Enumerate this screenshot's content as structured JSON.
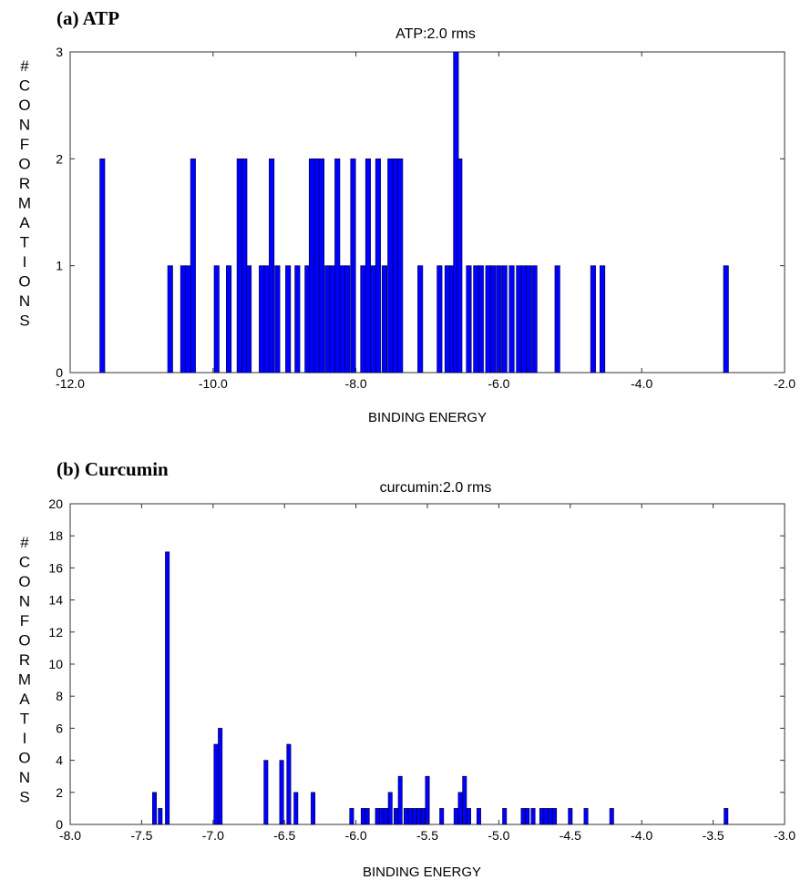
{
  "colors": {
    "bar": "#0000ff",
    "frame": "#333333",
    "text": "#000000"
  },
  "chart_data": [
    {
      "type": "bar",
      "panel_label": "(a) ATP",
      "title": "ATP:2.0 rms",
      "xlabel": "BINDING ENERGY",
      "ylabel": "# CONFORMATIONS",
      "xlim": [
        -12.0,
        -2.0
      ],
      "ylim": [
        0,
        3
      ],
      "xticks": [
        -12.0,
        -10.0,
        -8.0,
        -6.0,
        -4.0,
        -2.0
      ],
      "xtick_labels": [
        "-12.0",
        "-10.0",
        "-8.0",
        "-6.0",
        "-4.0",
        "-2.0"
      ],
      "yticks": [
        0,
        1,
        2,
        3
      ],
      "ytick_labels": [
        "0",
        "1",
        "2",
        "3"
      ],
      "grid": false,
      "bar_width": 0.07,
      "bars": [
        {
          "x": -11.55,
          "y": 2
        },
        {
          "x": -10.6,
          "y": 1
        },
        {
          "x": -10.42,
          "y": 1
        },
        {
          "x": -10.35,
          "y": 1
        },
        {
          "x": -10.28,
          "y": 2
        },
        {
          "x": -9.95,
          "y": 1
        },
        {
          "x": -9.78,
          "y": 1
        },
        {
          "x": -9.63,
          "y": 2
        },
        {
          "x": -9.56,
          "y": 2
        },
        {
          "x": -9.5,
          "y": 1
        },
        {
          "x": -9.32,
          "y": 1
        },
        {
          "x": -9.25,
          "y": 1
        },
        {
          "x": -9.18,
          "y": 2
        },
        {
          "x": -9.1,
          "y": 1
        },
        {
          "x": -8.95,
          "y": 1
        },
        {
          "x": -8.82,
          "y": 1
        },
        {
          "x": -8.68,
          "y": 1
        },
        {
          "x": -8.62,
          "y": 2
        },
        {
          "x": -8.55,
          "y": 2
        },
        {
          "x": -8.48,
          "y": 2
        },
        {
          "x": -8.4,
          "y": 1
        },
        {
          "x": -8.33,
          "y": 1
        },
        {
          "x": -8.26,
          "y": 2
        },
        {
          "x": -8.19,
          "y": 1
        },
        {
          "x": -8.12,
          "y": 1
        },
        {
          "x": -8.04,
          "y": 2
        },
        {
          "x": -7.9,
          "y": 1
        },
        {
          "x": -7.83,
          "y": 2
        },
        {
          "x": -7.76,
          "y": 1
        },
        {
          "x": -7.69,
          "y": 2
        },
        {
          "x": -7.6,
          "y": 1
        },
        {
          "x": -7.52,
          "y": 2
        },
        {
          "x": -7.45,
          "y": 2
        },
        {
          "x": -7.38,
          "y": 2
        },
        {
          "x": -7.1,
          "y": 1
        },
        {
          "x": -6.83,
          "y": 1
        },
        {
          "x": -6.72,
          "y": 1
        },
        {
          "x": -6.65,
          "y": 1
        },
        {
          "x": -6.6,
          "y": 3
        },
        {
          "x": -6.55,
          "y": 2
        },
        {
          "x": -6.42,
          "y": 1
        },
        {
          "x": -6.32,
          "y": 1
        },
        {
          "x": -6.25,
          "y": 1
        },
        {
          "x": -6.15,
          "y": 1
        },
        {
          "x": -6.08,
          "y": 1
        },
        {
          "x": -6.0,
          "y": 1
        },
        {
          "x": -5.92,
          "y": 1
        },
        {
          "x": -5.82,
          "y": 1
        },
        {
          "x": -5.72,
          "y": 1
        },
        {
          "x": -5.65,
          "y": 1
        },
        {
          "x": -5.58,
          "y": 1
        },
        {
          "x": -5.5,
          "y": 1
        },
        {
          "x": -5.18,
          "y": 1
        },
        {
          "x": -4.68,
          "y": 1
        },
        {
          "x": -4.55,
          "y": 1
        },
        {
          "x": -2.82,
          "y": 1
        }
      ]
    },
    {
      "type": "bar",
      "panel_label": "(b) Curcumin",
      "title": "curcumin:2.0 rms",
      "xlabel": "BINDING ENERGY",
      "ylabel": "# CONFORMATIONS",
      "xlim": [
        -8.0,
        -3.0
      ],
      "ylim": [
        0,
        20
      ],
      "xticks": [
        -8.0,
        -7.5,
        -7.0,
        -6.5,
        -6.0,
        -5.5,
        -5.0,
        -4.5,
        -4.0,
        -3.5,
        -3.0
      ],
      "xtick_labels": [
        "-8.0",
        "-7.5",
        "-7.0",
        "-6.5",
        "-6.0",
        "-5.5",
        "-5.0",
        "-4.5",
        "-4.0",
        "-3.5",
        "-3.0"
      ],
      "yticks": [
        0,
        2,
        4,
        6,
        8,
        10,
        12,
        14,
        16,
        18,
        20
      ],
      "ytick_labels": [
        "0",
        "2",
        "4",
        "6",
        "8",
        "10",
        "12",
        "14",
        "16",
        "18",
        "20"
      ],
      "grid": false,
      "bar_width": 0.028,
      "bars": [
        {
          "x": -7.41,
          "y": 2
        },
        {
          "x": -7.37,
          "y": 1
        },
        {
          "x": -7.32,
          "y": 17
        },
        {
          "x": -6.98,
          "y": 5
        },
        {
          "x": -6.95,
          "y": 6
        },
        {
          "x": -6.63,
          "y": 4
        },
        {
          "x": -6.52,
          "y": 4
        },
        {
          "x": -6.47,
          "y": 5
        },
        {
          "x": -6.42,
          "y": 2
        },
        {
          "x": -6.3,
          "y": 2
        },
        {
          "x": -6.03,
          "y": 1
        },
        {
          "x": -5.95,
          "y": 1
        },
        {
          "x": -5.92,
          "y": 1
        },
        {
          "x": -5.85,
          "y": 1
        },
        {
          "x": -5.82,
          "y": 1
        },
        {
          "x": -5.79,
          "y": 1
        },
        {
          "x": -5.76,
          "y": 2
        },
        {
          "x": -5.72,
          "y": 1
        },
        {
          "x": -5.69,
          "y": 3
        },
        {
          "x": -5.65,
          "y": 1
        },
        {
          "x": -5.62,
          "y": 1
        },
        {
          "x": -5.59,
          "y": 1
        },
        {
          "x": -5.56,
          "y": 1
        },
        {
          "x": -5.53,
          "y": 1
        },
        {
          "x": -5.5,
          "y": 3
        },
        {
          "x": -5.4,
          "y": 1
        },
        {
          "x": -5.3,
          "y": 1
        },
        {
          "x": -5.27,
          "y": 2
        },
        {
          "x": -5.24,
          "y": 3
        },
        {
          "x": -5.21,
          "y": 1
        },
        {
          "x": -5.14,
          "y": 1
        },
        {
          "x": -4.96,
          "y": 1
        },
        {
          "x": -4.83,
          "y": 1
        },
        {
          "x": -4.8,
          "y": 1
        },
        {
          "x": -4.76,
          "y": 1
        },
        {
          "x": -4.7,
          "y": 1
        },
        {
          "x": -4.67,
          "y": 1
        },
        {
          "x": -4.64,
          "y": 1
        },
        {
          "x": -4.61,
          "y": 1
        },
        {
          "x": -4.5,
          "y": 1
        },
        {
          "x": -4.39,
          "y": 1
        },
        {
          "x": -4.21,
          "y": 1
        },
        {
          "x": -3.41,
          "y": 1
        }
      ]
    }
  ]
}
